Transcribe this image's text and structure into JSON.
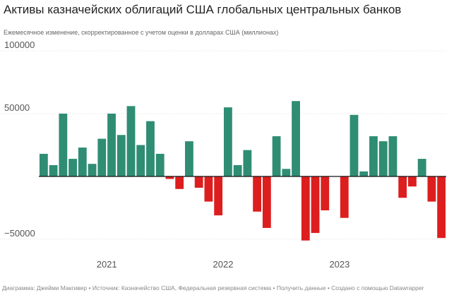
{
  "chart_data": {
    "type": "bar",
    "title": "Активы казначейских облигаций США глобальных центральных банков",
    "subtitle": "Ежемесячное изменение, скорректированное с учетом оценки в долларах США (миллионах)",
    "y_ticks": [
      100000,
      50000,
      -50000
    ],
    "y_tick_labels": [
      "100000",
      "50000",
      "−50000"
    ],
    "ylim": [
      -55000,
      100000
    ],
    "x_labels": [
      {
        "label": "2021",
        "index": 6.5
      },
      {
        "label": "2022",
        "index": 18.5
      },
      {
        "label": "2023",
        "index": 30.5
      }
    ],
    "values": [
      18000,
      9000,
      50000,
      14000,
      23000,
      10000,
      30000,
      50000,
      33000,
      56000,
      25000,
      44000,
      18000,
      -2000,
      -10000,
      28000,
      -9000,
      -20000,
      -31000,
      55000,
      9000,
      21000,
      -28000,
      -41000,
      32000,
      6000,
      60000,
      -51000,
      -45000,
      -27000,
      0,
      -33000,
      49000,
      4000,
      32000,
      28000,
      32000,
      -17000,
      -8000,
      14000,
      -20000,
      -49000
    ],
    "positive_color": "#2f8d74",
    "negative_color": "#dd1e1e",
    "footer": "Диаграмма: Джейми Макгивер • Источник: Казначейство США, Федеральная резервная система • Получить данные • Создано с помощью Datawrapper"
  }
}
